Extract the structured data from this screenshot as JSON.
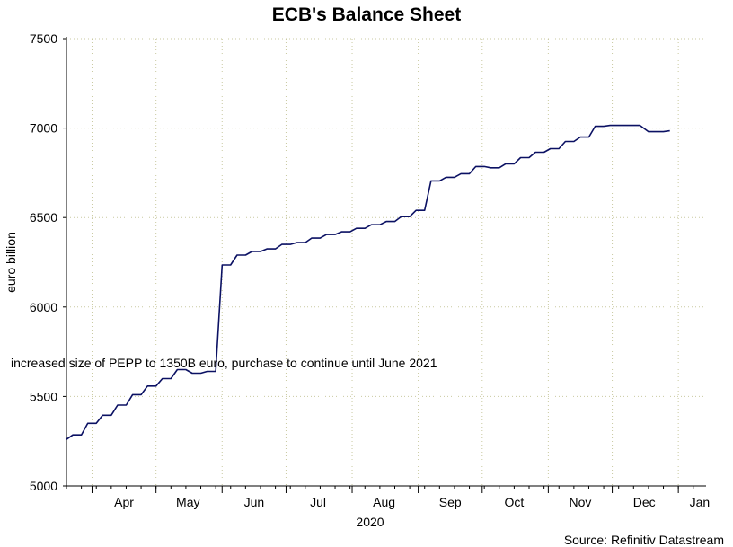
{
  "chart_data": {
    "type": "line",
    "title": "ECB's Balance Sheet",
    "ylabel": "euro billion",
    "xlabel": "2020",
    "source": "Source: Refinitiv Datastream",
    "annotation": "increased size of PEPP to 1350B euro, purchase to continue until June 2021",
    "ylim": [
      5000,
      7500
    ],
    "yticks": [
      5000,
      5500,
      6000,
      6500,
      7000,
      7500
    ],
    "x_range": [
      "2020-03-20",
      "2021-01-14"
    ],
    "month_labels": [
      {
        "date": "2020-04-16",
        "label": "Apr"
      },
      {
        "date": "2020-05-16",
        "label": "May"
      },
      {
        "date": "2020-06-16",
        "label": "Jun"
      },
      {
        "date": "2020-07-16",
        "label": "Jul"
      },
      {
        "date": "2020-08-16",
        "label": "Aug"
      },
      {
        "date": "2020-09-16",
        "label": "Sep"
      },
      {
        "date": "2020-10-16",
        "label": "Oct"
      },
      {
        "date": "2020-11-16",
        "label": "Nov"
      },
      {
        "date": "2020-12-16",
        "label": "Dec"
      },
      {
        "date": "2021-01-11",
        "label": "Jan"
      }
    ],
    "grid": true,
    "series": [
      {
        "color": "#0b1163",
        "points": [
          [
            "2020-03-20",
            5260
          ],
          [
            "2020-03-23",
            5285
          ],
          [
            "2020-03-27",
            5285
          ],
          [
            "2020-03-30",
            5350
          ],
          [
            "2020-04-03",
            5350
          ],
          [
            "2020-04-06",
            5395
          ],
          [
            "2020-04-10",
            5395
          ],
          [
            "2020-04-13",
            5452
          ],
          [
            "2020-04-17",
            5452
          ],
          [
            "2020-04-20",
            5510
          ],
          [
            "2020-04-24",
            5510
          ],
          [
            "2020-04-27",
            5558
          ],
          [
            "2020-05-01",
            5558
          ],
          [
            "2020-05-04",
            5600
          ],
          [
            "2020-05-08",
            5600
          ],
          [
            "2020-05-11",
            5650
          ],
          [
            "2020-05-15",
            5650
          ],
          [
            "2020-05-18",
            5630
          ],
          [
            "2020-05-22",
            5630
          ],
          [
            "2020-05-25",
            5640
          ],
          [
            "2020-05-29",
            5640
          ],
          [
            "2020-06-01",
            6235
          ],
          [
            "2020-06-05",
            6235
          ],
          [
            "2020-06-08",
            6290
          ],
          [
            "2020-06-12",
            6290
          ],
          [
            "2020-06-15",
            6310
          ],
          [
            "2020-06-19",
            6310
          ],
          [
            "2020-06-22",
            6325
          ],
          [
            "2020-06-26",
            6325
          ],
          [
            "2020-06-29",
            6350
          ],
          [
            "2020-07-03",
            6350
          ],
          [
            "2020-07-06",
            6360
          ],
          [
            "2020-07-10",
            6360
          ],
          [
            "2020-07-13",
            6385
          ],
          [
            "2020-07-17",
            6385
          ],
          [
            "2020-07-20",
            6405
          ],
          [
            "2020-07-24",
            6405
          ],
          [
            "2020-07-27",
            6420
          ],
          [
            "2020-07-31",
            6420
          ],
          [
            "2020-08-03",
            6440
          ],
          [
            "2020-08-07",
            6440
          ],
          [
            "2020-08-10",
            6460
          ],
          [
            "2020-08-14",
            6460
          ],
          [
            "2020-08-17",
            6478
          ],
          [
            "2020-08-21",
            6478
          ],
          [
            "2020-08-24",
            6505
          ],
          [
            "2020-08-28",
            6505
          ],
          [
            "2020-08-31",
            6540
          ],
          [
            "2020-09-04",
            6540
          ],
          [
            "2020-09-07",
            6705
          ],
          [
            "2020-09-11",
            6705
          ],
          [
            "2020-09-14",
            6725
          ],
          [
            "2020-09-18",
            6725
          ],
          [
            "2020-09-21",
            6745
          ],
          [
            "2020-09-25",
            6745
          ],
          [
            "2020-09-28",
            6785
          ],
          [
            "2020-10-02",
            6785
          ],
          [
            "2020-10-05",
            6778
          ],
          [
            "2020-10-09",
            6778
          ],
          [
            "2020-10-12",
            6800
          ],
          [
            "2020-10-16",
            6800
          ],
          [
            "2020-10-19",
            6835
          ],
          [
            "2020-10-23",
            6835
          ],
          [
            "2020-10-26",
            6865
          ],
          [
            "2020-10-30",
            6865
          ],
          [
            "2020-11-02",
            6885
          ],
          [
            "2020-11-06",
            6885
          ],
          [
            "2020-11-09",
            6925
          ],
          [
            "2020-11-13",
            6925
          ],
          [
            "2020-11-16",
            6950
          ],
          [
            "2020-11-20",
            6950
          ],
          [
            "2020-11-23",
            7010
          ],
          [
            "2020-11-27",
            7010
          ],
          [
            "2020-11-30",
            7015
          ],
          [
            "2020-12-04",
            7015
          ],
          [
            "2020-12-07",
            7015
          ],
          [
            "2020-12-11",
            7015
          ],
          [
            "2020-12-14",
            7015
          ],
          [
            "2020-12-18",
            6980
          ],
          [
            "2020-12-21",
            6980
          ],
          [
            "2020-12-25",
            6980
          ],
          [
            "2020-12-28",
            6985
          ]
        ]
      }
    ]
  }
}
